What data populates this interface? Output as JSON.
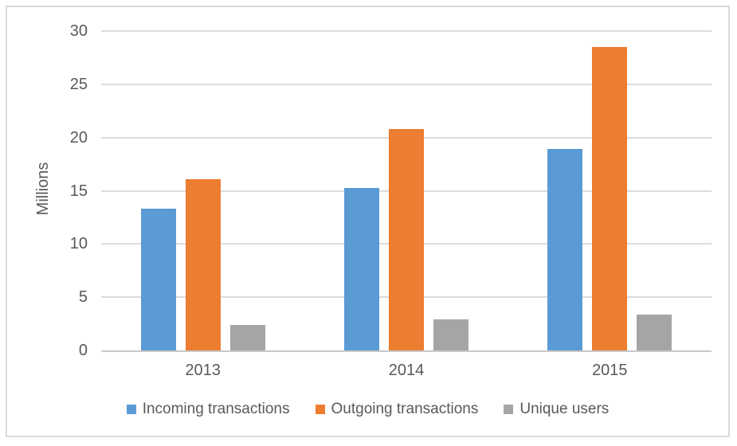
{
  "chart_data": {
    "type": "bar",
    "title": "",
    "categories": [
      "2013",
      "2014",
      "2015"
    ],
    "series": [
      {
        "name": "Incoming transactions",
        "color": "#5B9BD5",
        "values": [
          13.3,
          15.3,
          18.9
        ]
      },
      {
        "name": "Outgoing transactions",
        "color": "#ED7D31",
        "values": [
          16.1,
          20.8,
          28.5
        ]
      },
      {
        "name": "Unique users",
        "color": "#A5A5A5",
        "values": [
          2.4,
          2.9,
          3.4
        ]
      }
    ],
    "xlabel": "",
    "ylabel": "Millions",
    "ylim": [
      0,
      30
    ],
    "yticks": [
      0,
      5,
      10,
      15,
      20,
      25,
      30
    ],
    "grid": true,
    "legend_position": "bottom",
    "colors": {
      "gridline": "#DCDCDC",
      "axis_line": "#C8C8C8",
      "text": "#595959",
      "frame_border": "#D9D9D9",
      "background": "#FFFFFF"
    }
  }
}
